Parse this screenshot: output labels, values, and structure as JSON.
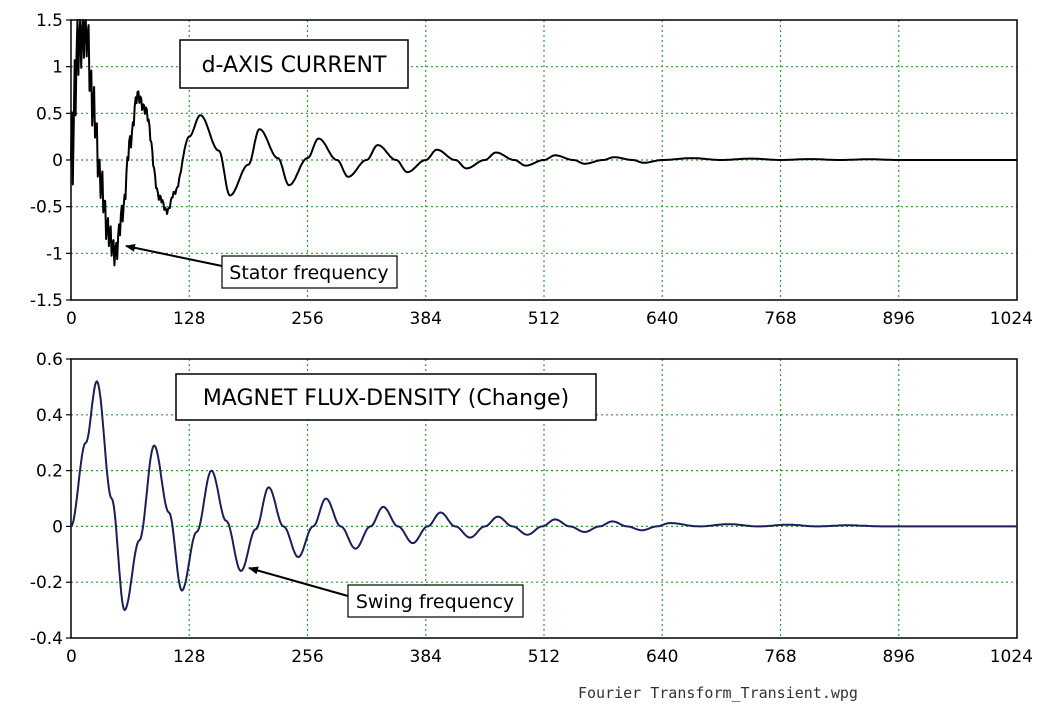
{
  "chart_data": [
    {
      "type": "line",
      "title": "d-AXIS CURRENT",
      "xlabel": "",
      "ylabel": "",
      "xlim": [
        0,
        1024
      ],
      "ylim": [
        -1.5,
        1.5
      ],
      "xticks": [
        "0",
        "128",
        "256",
        "384",
        "512",
        "640",
        "768",
        "896",
        "1024"
      ],
      "yticks": [
        "1.5",
        "1",
        "0.5",
        "0",
        "-0.5",
        "-1",
        "-1.5"
      ],
      "grid": true,
      "line_color": "#000000",
      "series": [
        {
          "name": "",
          "model": "damped oscillation: main swing period ~62 samples, amplitude ~0.75 decaying; superimposed stator-frequency ripple ~0.6 decaying rapidly over the first ~60 samples",
          "x": [
            0,
            8,
            16,
            24,
            32,
            40,
            48,
            56,
            64,
            72,
            80,
            96,
            104,
            112,
            128,
            140,
            160,
            172,
            192,
            204,
            224,
            236,
            256,
            268,
            288,
            300,
            320,
            332,
            352,
            364,
            384,
            396,
            416,
            428,
            448,
            460,
            480,
            492,
            512,
            524,
            544,
            556,
            576,
            588,
            608,
            620,
            640,
            672,
            704,
            736,
            768,
            800,
            832,
            864,
            896,
            960,
            1024
          ],
          "y": [
            0.0,
            1.3,
            1.45,
            0.6,
            -0.2,
            -0.75,
            -1.0,
            -0.55,
            0.2,
            0.7,
            0.55,
            -0.4,
            -0.55,
            -0.35,
            0.25,
            0.48,
            0.1,
            -0.38,
            -0.05,
            0.33,
            0.02,
            -0.27,
            0.02,
            0.23,
            0.0,
            -0.18,
            0.0,
            0.16,
            0.0,
            -0.13,
            0.0,
            0.11,
            0.0,
            -0.09,
            0.0,
            0.08,
            0.0,
            -0.06,
            0.0,
            0.05,
            0.0,
            -0.04,
            0.0,
            0.03,
            0.0,
            -0.03,
            0.0,
            0.02,
            0.0,
            0.015,
            0.0,
            0.01,
            0.0,
            0.008,
            0.0,
            0.0,
            0.0
          ]
        }
      ],
      "annotations": [
        {
          "text": "d-AXIS CURRENT",
          "kind": "title-box"
        },
        {
          "text": "Stator frequency",
          "kind": "arrow-label",
          "points_to": [
            45,
            -0.95
          ]
        }
      ]
    },
    {
      "type": "line",
      "title": "MAGNET FLUX-DENSITY (Change)",
      "xlabel": "",
      "ylabel": "",
      "xlim": [
        0,
        1024
      ],
      "ylim": [
        -0.4,
        0.6
      ],
      "xticks": [
        "0",
        "128",
        "256",
        "384",
        "512",
        "640",
        "768",
        "896",
        "1024"
      ],
      "yticks": [
        "0.6",
        "0.4",
        "0.2",
        "0",
        "-0.2",
        "-0.4"
      ],
      "grid": true,
      "line_color": "#1a1f5a",
      "series": [
        {
          "name": "",
          "x": [
            0,
            16,
            28,
            44,
            58,
            74,
            90,
            106,
            120,
            136,
            152,
            168,
            184,
            200,
            214,
            230,
            246,
            262,
            276,
            292,
            308,
            324,
            338,
            354,
            370,
            386,
            400,
            416,
            432,
            448,
            462,
            478,
            494,
            510,
            524,
            540,
            556,
            572,
            586,
            602,
            618,
            634,
            648,
            680,
            712,
            744,
            776,
            808,
            840,
            880,
            960,
            1024
          ],
          "y": [
            0.0,
            0.3,
            0.52,
            0.1,
            -0.3,
            -0.05,
            0.29,
            0.05,
            -0.23,
            -0.02,
            0.2,
            0.02,
            -0.16,
            -0.01,
            0.14,
            0.0,
            -0.11,
            0.0,
            0.1,
            0.0,
            -0.08,
            0.0,
            0.07,
            0.0,
            -0.06,
            0.0,
            0.05,
            0.0,
            -0.04,
            0.0,
            0.035,
            0.0,
            -0.03,
            0.0,
            0.025,
            0.0,
            -0.02,
            0.0,
            0.018,
            0.0,
            -0.014,
            0.0,
            0.012,
            0.0,
            0.008,
            0.0,
            0.006,
            0.0,
            0.004,
            0.0,
            0.0,
            0.0
          ]
        }
      ],
      "annotations": [
        {
          "text": "MAGNET FLUX-DENSITY (Change)",
          "kind": "title-box"
        },
        {
          "text": "Swing frequency",
          "kind": "arrow-label",
          "points_to": [
            180,
            -0.16
          ]
        }
      ]
    }
  ],
  "footer": {
    "filename": "Fourier Transform_Transient.wpg"
  }
}
